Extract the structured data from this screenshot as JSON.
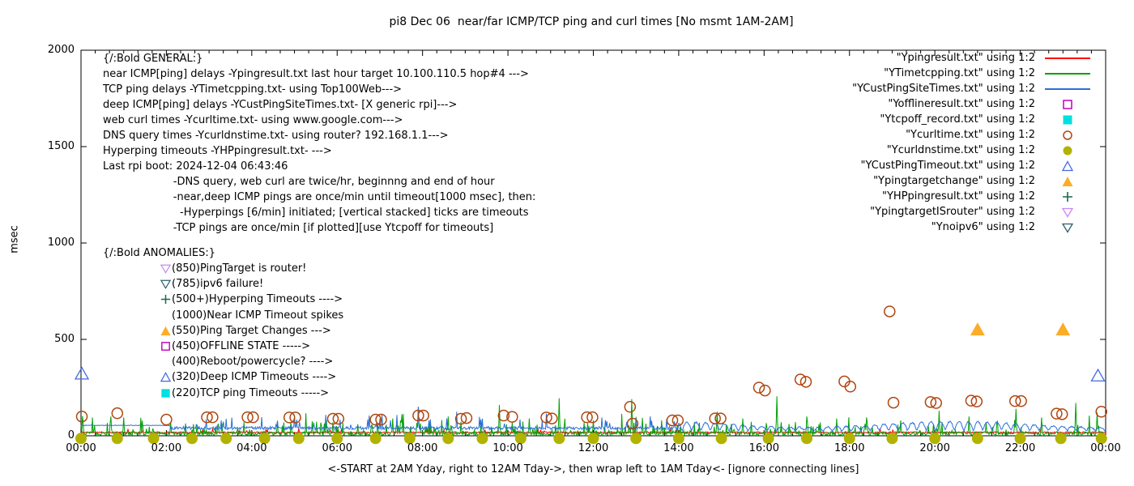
{
  "title": "pi8 Dec 06  near/far ICMP/TCP ping and curl times [No msmt 1AM-2AM]",
  "plot": {
    "xlabel": "<-START at 2AM Yday, right to 12AM Tday->, then wrap left to 1AM Tday<- [ignore connecting lines]",
    "ylabel": "msec"
  },
  "colors": {
    "red": "#ff0000",
    "green": "#00a000",
    "blue": "#2a6fd6",
    "magenta": "#bf00bf",
    "cyan": "#00e0e0",
    "brown": "#b0450e",
    "olive": "#b2b200",
    "royal": "#4169e1",
    "orange": "#fbad28",
    "darkgreen": "#166a4b",
    "violet": "#cc85f5",
    "teal": "#2e5e6f",
    "axis": "#000000",
    "background": "#ffffff"
  },
  "legend": {
    "items": [
      {
        "label": "\"Ypingresult.txt\" using 1:2",
        "swatch": "line",
        "color": "red"
      },
      {
        "label": "\"YTimetcpping.txt\" using 1:2",
        "swatch": "line",
        "color": "green"
      },
      {
        "label": "\"YCustPingSiteTimes.txt\" using 1:2",
        "swatch": "line",
        "color": "blue"
      },
      {
        "label": "\"Yofflineresult.txt\" using 1:2",
        "swatch": "square-open",
        "color": "magenta"
      },
      {
        "label": "\"Ytcpoff_record.txt\" using 1:2",
        "swatch": "square-filled",
        "color": "cyan"
      },
      {
        "label": "\"Ycurltime.txt\" using 1:2",
        "swatch": "circle-open",
        "color": "brown"
      },
      {
        "label": "\"Ycurldnstime.txt\" using 1:2",
        "swatch": "circle-filled",
        "color": "olive"
      },
      {
        "label": "\"YCustPingTimeout.txt\" using 1:2",
        "swatch": "triangle-up-open",
        "color": "royal"
      },
      {
        "label": "\"Ypingtargetchange\" using 1:2",
        "swatch": "triangle-up-filled",
        "color": "orange"
      },
      {
        "label": "\"YHPpingresult.txt\" using 1:2",
        "swatch": "plus",
        "color": "darkgreen"
      },
      {
        "label": "\"YpingtargetISrouter\" using 1:2",
        "swatch": "triangle-down-open",
        "color": "violet"
      },
      {
        "label": "\"Ynoipv6\" using 1:2",
        "swatch": "triangle-down-open",
        "color": "teal"
      }
    ]
  },
  "annotations": {
    "general": {
      "title": "{/:Bold GENERAL:}",
      "lines": [
        "near ICMP[ping] delays -Ypingresult.txt last hour target 10.100.110.5 hop#4 --->",
        "TCP ping delays -YTimetcpping.txt- using Top100Web--->",
        "deep ICMP[ping] delays -YCustPingSiteTimes.txt- [X generic rpi]--->",
        "web curl times -Ycurltime.txt- using www.google.com--->",
        "DNS query times -Ycurldnstime.txt- using router? 192.168.1.1--->",
        "Hyperping timeouts -YHPpingresult.txt- --->",
        "Last rpi boot: 2024-12-04 06:43:46",
        "                     -DNS query, web curl are twice/hr, beginnng and end of hour",
        "                     -near,deep ICMP pings are once/min until timeout[1000 msec], then:",
        "                       -Hyperpings [6/min] initiated; [vertical stacked] ticks are timeouts",
        "                     -TCP pings are once/min [if plotted][use Ytcpoff for timeouts]"
      ]
    },
    "anomalies": {
      "title": "{/:Bold ANOMALIES:}",
      "items": [
        {
          "icon": "triangle-down-open",
          "color": "violet",
          "text": "(850)PingTarget is router!"
        },
        {
          "icon": "triangle-down-open",
          "color": "teal",
          "text": "(785)ipv6 failure!"
        },
        {
          "icon": "plus",
          "color": "darkgreen",
          "text": "(500+)Hyperping Timeouts ---->"
        },
        {
          "icon": null,
          "color": null,
          "text": "(1000)Near ICMP Timeout spikes"
        },
        {
          "icon": "triangle-up-filled",
          "color": "orange",
          "text": "(550)Ping Target Changes --->"
        },
        {
          "icon": "square-open",
          "color": "magenta",
          "text": "(450)OFFLINE STATE ----->"
        },
        {
          "icon": null,
          "color": null,
          "text": "(400)Reboot/powercycle? ---->"
        },
        {
          "icon": "triangle-up-open",
          "color": "royal",
          "text": "(320)Deep ICMP Timeouts ---->"
        },
        {
          "icon": "square-filled",
          "color": "cyan",
          "text": "(220)TCP ping Timeouts ----->"
        }
      ]
    }
  },
  "chart_data": {
    "type": "line",
    "title": "pi8 Dec 06  near/far ICMP/TCP ping and curl times [No msmt 1AM-2AM]",
    "xlabel": "<-START at 2AM Yday, right to 12AM Tday->, then wrap left to 1AM Tday<- [ignore connecting lines]",
    "ylabel": "msec",
    "grid": false,
    "legend_position": "inside top right",
    "x_axis": {
      "range_hours": [
        0,
        24
      ],
      "tick_labels": [
        "00:00",
        "02:00",
        "04:00",
        "06:00",
        "08:00",
        "10:00",
        "12:00",
        "14:00",
        "16:00",
        "18:00",
        "20:00",
        "22:00",
        "00:00"
      ],
      "minor_tick_minutes": 20
    },
    "y_axis": {
      "range": [
        0,
        2000
      ],
      "tick_values": [
        0,
        500,
        1000,
        1500,
        2000
      ]
    },
    "line_series": [
      {
        "name": "Ypingresult.txt",
        "color": "red",
        "style": "noisy-flat",
        "baseline_msec": 17,
        "noise_msec": 7,
        "spikes": []
      },
      {
        "name": "YTimetcpping.txt",
        "color": "green",
        "style": "grass-spiky",
        "baseline_msec": 12,
        "noise_msec": 18,
        "spikes": [
          [
            0.7,
            100
          ],
          [
            1.0,
            95
          ],
          [
            2.1,
            70
          ],
          [
            3.3,
            65
          ],
          [
            4.6,
            75
          ],
          [
            5.9,
            70
          ],
          [
            7.3,
            90
          ],
          [
            7.9,
            150
          ],
          [
            8.6,
            100
          ],
          [
            9.8,
            160
          ],
          [
            10.5,
            90
          ],
          [
            11.2,
            195
          ],
          [
            12.0,
            80
          ],
          [
            12.9,
            190
          ],
          [
            13.6,
            80
          ],
          [
            14.9,
            125
          ],
          [
            15.5,
            90
          ],
          [
            16.3,
            205
          ],
          [
            17.0,
            100
          ],
          [
            17.7,
            90
          ],
          [
            18.4,
            95
          ],
          [
            19.2,
            80
          ],
          [
            20.1,
            130
          ],
          [
            20.8,
            100
          ],
          [
            21.9,
            140
          ],
          [
            22.5,
            95
          ],
          [
            23.3,
            170
          ],
          [
            23.8,
            120
          ]
        ]
      },
      {
        "name": "YCustPingSiteTimes.txt",
        "color": "blue",
        "style": "flat-then-scalloped",
        "baseline_msec": 40,
        "noise_msec": 16,
        "plateau": {
          "until_hour": 2.1,
          "msec": 54
        },
        "scallop": {
          "after_hour": 14,
          "min_msec": 26,
          "peak_msec": 90,
          "period_hours": 0.22
        },
        "spikes": [
          [
            5.0,
            100
          ],
          [
            7.0,
            90
          ],
          [
            7.9,
            150
          ],
          [
            8.8,
            125
          ],
          [
            10.9,
            115
          ],
          [
            12.2,
            95
          ],
          [
            13.0,
            90
          ]
        ]
      }
    ],
    "scatter_series": [
      {
        "name": "Ycurltime.txt",
        "marker": "circle-open",
        "color": "brown",
        "points": [
          [
            0.02,
            100
          ],
          [
            0.85,
            117
          ],
          [
            2.0,
            84
          ],
          [
            2.95,
            96
          ],
          [
            3.08,
            96
          ],
          [
            3.9,
            96
          ],
          [
            4.03,
            96
          ],
          [
            4.88,
            95
          ],
          [
            5.02,
            95
          ],
          [
            5.9,
            88
          ],
          [
            6.03,
            88
          ],
          [
            6.9,
            84
          ],
          [
            7.03,
            84
          ],
          [
            7.9,
            105
          ],
          [
            8.02,
            105
          ],
          [
            8.9,
            88
          ],
          [
            9.03,
            92
          ],
          [
            9.9,
            105
          ],
          [
            10.1,
            98
          ],
          [
            10.9,
            95
          ],
          [
            11.03,
            90
          ],
          [
            11.85,
            96
          ],
          [
            11.98,
            96
          ],
          [
            12.86,
            150
          ],
          [
            12.92,
            63
          ],
          [
            13.85,
            80
          ],
          [
            13.98,
            80
          ],
          [
            14.85,
            90
          ],
          [
            14.98,
            90
          ],
          [
            15.88,
            250
          ],
          [
            16.02,
            235
          ],
          [
            16.85,
            292
          ],
          [
            16.98,
            280
          ],
          [
            17.88,
            282
          ],
          [
            18.02,
            255
          ],
          [
            18.94,
            645
          ],
          [
            19.03,
            172
          ],
          [
            19.9,
            175
          ],
          [
            20.03,
            170
          ],
          [
            20.85,
            182
          ],
          [
            20.98,
            178
          ],
          [
            21.88,
            180
          ],
          [
            22.02,
            180
          ],
          [
            22.85,
            115
          ],
          [
            22.98,
            112
          ],
          [
            23.9,
            125
          ]
        ]
      },
      {
        "name": "Ycurldnstime.txt",
        "marker": "circle-filled",
        "color": "olive",
        "points": [
          [
            0,
            3
          ],
          [
            0.85,
            3
          ],
          [
            1.7,
            3
          ],
          [
            2.6,
            3
          ],
          [
            3.4,
            3
          ],
          [
            4.3,
            3
          ],
          [
            5.1,
            3
          ],
          [
            6.0,
            3
          ],
          [
            6.9,
            3
          ],
          [
            7.7,
            3
          ],
          [
            8.6,
            3
          ],
          [
            9.4,
            3
          ],
          [
            10.3,
            3
          ],
          [
            11.2,
            3
          ],
          [
            12.0,
            3
          ],
          [
            13.0,
            3
          ],
          [
            14.0,
            3
          ],
          [
            15.0,
            3
          ],
          [
            16.1,
            3
          ],
          [
            17.0,
            3
          ],
          [
            18.0,
            3
          ],
          [
            19.0,
            3
          ],
          [
            20.0,
            3
          ],
          [
            21.0,
            3
          ],
          [
            22.0,
            3
          ],
          [
            22.95,
            3
          ],
          [
            23.9,
            3
          ]
        ]
      },
      {
        "name": "YCustPingTimeout.txt",
        "marker": "triangle-up-open",
        "color": "royal",
        "points": [
          [
            0.02,
            320
          ],
          [
            23.82,
            310
          ]
        ]
      },
      {
        "name": "Ypingtargetchange",
        "marker": "triangle-up-filled",
        "color": "orange",
        "points": [
          [
            21.0,
            550
          ],
          [
            23.0,
            550
          ]
        ]
      }
    ]
  }
}
